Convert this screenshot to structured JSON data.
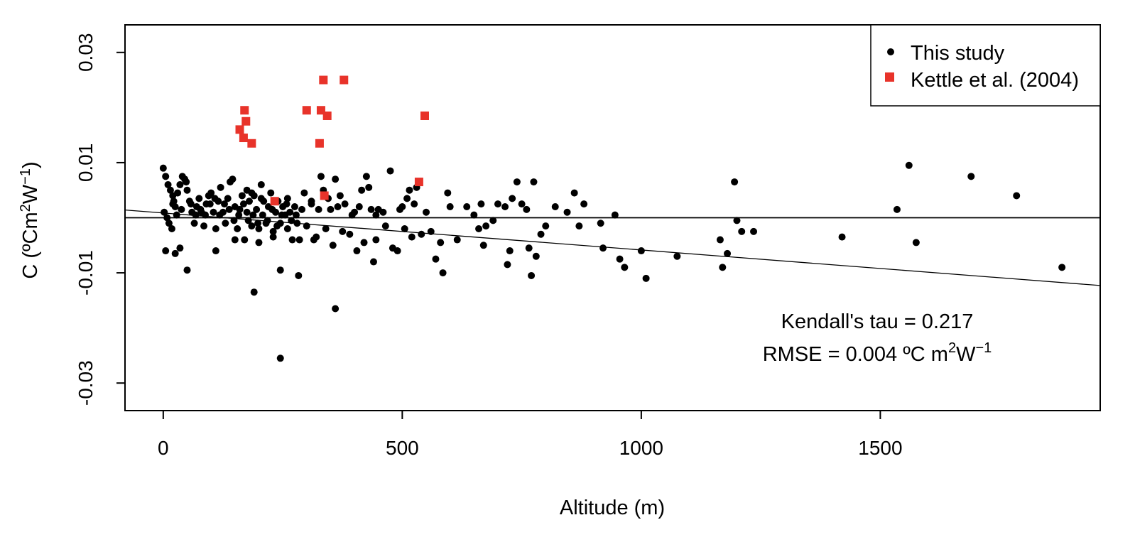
{
  "chart_data": {
    "type": "scatter",
    "xlabel": "Altitude (m)",
    "ylabel": {
      "base": "C (ºCm",
      "sup1": "2",
      "mid": "W",
      "sup2": "−1",
      "end": ")"
    },
    "xlim": [
      -80,
      1960
    ],
    "ylim": [
      -0.035,
      0.035
    ],
    "xticks": [
      0,
      500,
      1000,
      1500
    ],
    "xtick_labels": [
      "0",
      "500",
      "1000",
      "1500"
    ],
    "yticks": [
      -0.03,
      -0.01,
      0.01,
      0.03
    ],
    "ytick_labels": [
      "-0.03",
      "-0.01",
      "0.01",
      "0.03"
    ],
    "grid": false,
    "legend_position": "top-right",
    "horizontal_reference_line": 0.0,
    "trend_line": {
      "x": [
        -80,
        1960
      ],
      "y": [
        0.0014,
        -0.0123
      ]
    },
    "annotations": {
      "kendall": "Kendall's tau =  0.217",
      "rmse_prefix": "RMSE =  0.004 ºC m",
      "rmse_sup1": "2",
      "rmse_mid": "W",
      "rmse_sup2": "−1"
    },
    "series": [
      {
        "name": "This study",
        "marker": "circle",
        "color": "#000000",
        "points": [
          [
            0,
            0.009
          ],
          [
            5,
            0.0075
          ],
          [
            10,
            0.006
          ],
          [
            15,
            0.005
          ],
          [
            20,
            0.004
          ],
          [
            25,
            0.002
          ],
          [
            2,
            0.001
          ],
          [
            8,
            0.0
          ],
          [
            12,
            -0.001
          ],
          [
            18,
            -0.002
          ],
          [
            22,
            0.003
          ],
          [
            30,
            0.0045
          ],
          [
            35,
            0.006
          ],
          [
            40,
            0.0075
          ],
          [
            45,
            0.007
          ],
          [
            50,
            0.005
          ],
          [
            55,
            0.003
          ],
          [
            60,
            0.001
          ],
          [
            65,
            -0.001
          ],
          [
            48,
            0.0065
          ],
          [
            70,
            0.002
          ],
          [
            75,
            0.0035
          ],
          [
            80,
            0.001
          ],
          [
            85,
            -0.0015
          ],
          [
            90,
            0.0025
          ],
          [
            95,
            0.004
          ],
          [
            100,
            0.0045
          ],
          [
            105,
            0.001
          ],
          [
            110,
            -0.002
          ],
          [
            115,
            0.003
          ],
          [
            120,
            0.0055
          ],
          [
            125,
            0.001
          ],
          [
            130,
            -0.001
          ],
          [
            135,
            0.0035
          ],
          [
            140,
            0.0065
          ],
          [
            145,
            0.007
          ],
          [
            150,
            0.002
          ],
          [
            155,
            -0.002
          ],
          [
            160,
            0.0015
          ],
          [
            165,
            0.004
          ],
          [
            170,
            -0.004
          ],
          [
            175,
            0.001
          ],
          [
            180,
            0.003
          ],
          [
            185,
            -0.0015
          ],
          [
            190,
            0.004
          ],
          [
            195,
            0.0015
          ],
          [
            200,
            -0.002
          ],
          [
            205,
            0.006
          ],
          [
            210,
            0.003
          ],
          [
            215,
            -0.001
          ],
          [
            220,
            0.002
          ],
          [
            225,
            0.0045
          ],
          [
            230,
            -0.0025
          ],
          [
            235,
            0.001
          ],
          [
            240,
            0.003
          ],
          [
            245,
            -0.001
          ],
          [
            250,
            0.002
          ],
          [
            255,
            0.0005
          ],
          [
            260,
            -0.002
          ],
          [
            265,
            0.001
          ],
          [
            270,
            -0.004
          ],
          [
            275,
            0.002
          ],
          [
            280,
            -0.001
          ],
          [
            290,
            0.0015
          ],
          [
            300,
            -0.0015
          ],
          [
            310,
            0.003
          ],
          [
            320,
            -0.0035
          ],
          [
            330,
            0.0075
          ],
          [
            335,
            0.005
          ],
          [
            340,
            -0.002
          ],
          [
            350,
            0.0015
          ],
          [
            355,
            -0.005
          ],
          [
            360,
            0.007
          ],
          [
            365,
            0.002
          ],
          [
            370,
            0.004
          ],
          [
            375,
            -0.0025
          ],
          [
            380,
            0.0025
          ],
          [
            390,
            -0.003
          ],
          [
            400,
            0.001
          ],
          [
            405,
            -0.006
          ],
          [
            410,
            0.002
          ],
          [
            415,
            0.005
          ],
          [
            420,
            -0.0045
          ],
          [
            425,
            0.0075
          ],
          [
            430,
            0.0055
          ],
          [
            435,
            0.0015
          ],
          [
            440,
            -0.008
          ],
          [
            445,
            -0.004
          ],
          [
            450,
            0.0015
          ],
          [
            460,
            0.001
          ],
          [
            475,
            0.0085
          ],
          [
            480,
            -0.0055
          ],
          [
            490,
            -0.006
          ],
          [
            495,
            0.0015
          ],
          [
            500,
            0.002
          ],
          [
            505,
            -0.002
          ],
          [
            510,
            0.0035
          ],
          [
            515,
            0.005
          ],
          [
            520,
            -0.0035
          ],
          [
            525,
            0.0025
          ],
          [
            530,
            0.0055
          ],
          [
            540,
            -0.003
          ],
          [
            550,
            0.001
          ],
          [
            560,
            -0.0025
          ],
          [
            570,
            -0.0075
          ],
          [
            580,
            -0.0045
          ],
          [
            585,
            -0.01
          ],
          [
            595,
            0.0045
          ],
          [
            600,
            0.002
          ],
          [
            615,
            -0.004
          ],
          [
            635,
            0.002
          ],
          [
            650,
            0.0005
          ],
          [
            660,
            -0.002
          ],
          [
            665,
            0.0025
          ],
          [
            670,
            -0.005
          ],
          [
            675,
            -0.0015
          ],
          [
            690,
            -0.0005
          ],
          [
            700,
            0.0025
          ],
          [
            715,
            0.002
          ],
          [
            720,
            -0.0085
          ],
          [
            725,
            -0.006
          ],
          [
            730,
            0.0035
          ],
          [
            740,
            0.0065
          ],
          [
            750,
            0.0025
          ],
          [
            760,
            0.0015
          ],
          [
            765,
            -0.0055
          ],
          [
            770,
            -0.0105
          ],
          [
            775,
            0.0065
          ],
          [
            780,
            -0.007
          ],
          [
            790,
            -0.003
          ],
          [
            800,
            -0.0015
          ],
          [
            820,
            0.002
          ],
          [
            845,
            0.001
          ],
          [
            860,
            0.0045
          ],
          [
            870,
            -0.0015
          ],
          [
            880,
            0.0025
          ],
          [
            915,
            -0.001
          ],
          [
            920,
            -0.0055
          ],
          [
            945,
            0.0005
          ],
          [
            955,
            -0.0075
          ],
          [
            965,
            -0.009
          ],
          [
            1000,
            -0.006
          ],
          [
            1010,
            -0.011
          ],
          [
            1075,
            -0.007
          ],
          [
            1165,
            -0.004
          ],
          [
            1170,
            -0.009
          ],
          [
            1180,
            -0.0065
          ],
          [
            1195,
            0.0065
          ],
          [
            1200,
            -0.0005
          ],
          [
            1210,
            -0.0025
          ],
          [
            1235,
            -0.0025
          ],
          [
            1420,
            -0.0035
          ],
          [
            1535,
            0.0015
          ],
          [
            1560,
            0.0095
          ],
          [
            1575,
            -0.0045
          ],
          [
            1690,
            0.0075
          ],
          [
            1785,
            0.004
          ],
          [
            1880,
            -0.009
          ],
          [
            190,
            -0.0135
          ],
          [
            245,
            -0.0095
          ],
          [
            283,
            -0.0105
          ],
          [
            360,
            -0.0165
          ],
          [
            245,
            -0.0255
          ],
          [
            25,
            -0.0065
          ],
          [
            50,
            -0.0095
          ],
          [
            5,
            -0.006
          ],
          [
            35,
            -0.0055
          ],
          [
            110,
            -0.006
          ],
          [
            150,
            -0.004
          ],
          [
            200,
            -0.0045
          ],
          [
            230,
            -0.0035
          ],
          [
            285,
            -0.004
          ],
          [
            315,
            -0.004
          ],
          [
            175,
            0.005
          ],
          [
            185,
            0.0045
          ],
          [
            205,
            0.0035
          ],
          [
            260,
            0.0035
          ],
          [
            295,
            0.0045
          ],
          [
            310,
            0.0025
          ],
          [
            325,
            0.0015
          ],
          [
            345,
            0.0035
          ],
          [
            395,
            0.0005
          ],
          [
            445,
            0.0005
          ],
          [
            465,
            -0.0015
          ],
          [
            20,
            0.0025
          ],
          [
            28,
            0.0005
          ],
          [
            38,
            0.0015
          ],
          [
            58,
            0.0025
          ],
          [
            68,
            0.0005
          ],
          [
            78,
            0.0015
          ],
          [
            88,
            0.0005
          ],
          [
            98,
            0.0025
          ],
          [
            108,
            0.0035
          ],
          [
            118,
            0.0005
          ],
          [
            128,
            0.0025
          ],
          [
            138,
            0.0015
          ],
          [
            148,
            -0.0005
          ],
          [
            158,
            0.0005
          ],
          [
            168,
            0.0025
          ],
          [
            178,
            -0.0005
          ],
          [
            188,
            0.0005
          ],
          [
            198,
            -0.001
          ],
          [
            208,
            0.0005
          ],
          [
            218,
            -0.0005
          ],
          [
            228,
            0.0015
          ],
          [
            238,
            -0.0015
          ],
          [
            248,
            0.0005
          ],
          [
            258,
            0.0025
          ],
          [
            268,
            -0.0005
          ],
          [
            278,
            0.0005
          ]
        ]
      },
      {
        "name": "Kettle et al. (2004)",
        "marker": "square",
        "color": "#e8332a",
        "points": [
          [
            160,
            0.016
          ],
          [
            170,
            0.0195
          ],
          [
            173,
            0.0175
          ],
          [
            168,
            0.0145
          ],
          [
            185,
            0.0135
          ],
          [
            300,
            0.0195
          ],
          [
            330,
            0.0195
          ],
          [
            343,
            0.0185
          ],
          [
            327,
            0.0135
          ],
          [
            335,
            0.025
          ],
          [
            378,
            0.025
          ],
          [
            547,
            0.0185
          ],
          [
            233,
            0.003
          ],
          [
            337,
            0.004
          ],
          [
            535,
            0.0065
          ]
        ]
      }
    ]
  }
}
